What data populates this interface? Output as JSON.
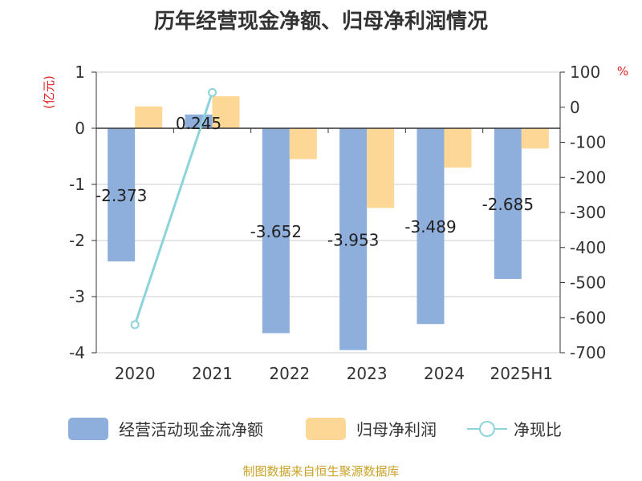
{
  "chart_data": {
    "type": "bar",
    "title": "历年经营现金净额、归母净利润情况",
    "categories": [
      "2020",
      "2021",
      "2022",
      "2023",
      "2024",
      "2025H1"
    ],
    "series": [
      {
        "name": "经营活动现金流净额",
        "kind": "bar",
        "axis": "left",
        "color": "#8eaedb",
        "values": [
          -2.373,
          0.245,
          -3.652,
          -3.953,
          -3.489,
          -2.685
        ],
        "data_labels": [
          "-2.373",
          "0.245",
          "-3.652",
          "-3.953",
          "-3.489",
          "-2.685"
        ]
      },
      {
        "name": "归母净利润",
        "kind": "bar",
        "axis": "left",
        "color": "#fdd795",
        "values": [
          0.39,
          0.57,
          -0.55,
          -1.42,
          -0.7,
          -0.36
        ]
      },
      {
        "name": "净现比",
        "kind": "line",
        "axis": "right",
        "color": "#8dd3da",
        "values": [
          -620,
          42,
          null,
          null,
          null,
          null
        ]
      }
    ],
    "left_axis": {
      "unit": "(亿元)",
      "ylim": [
        -4,
        1
      ],
      "ticks": [
        "1",
        "0",
        "-1",
        "-2",
        "-3",
        "-4"
      ]
    },
    "right_axis": {
      "unit": "%",
      "ylim": [
        -700,
        100
      ],
      "ticks": [
        "100",
        "0",
        "-100",
        "-200",
        "-300",
        "-400",
        "-500",
        "-600",
        "-700"
      ]
    },
    "grid": true,
    "legend_placement": "bottom"
  },
  "footer": {
    "source": "制图数据来自恒生聚源数据库"
  }
}
